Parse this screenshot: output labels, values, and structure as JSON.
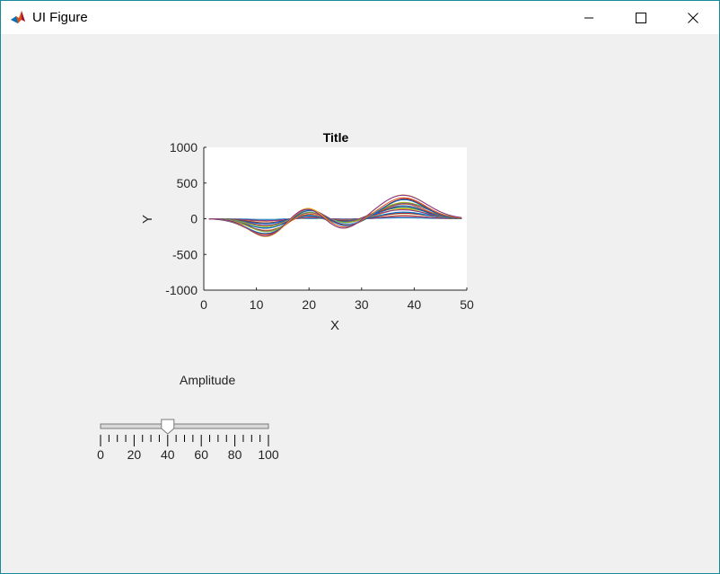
{
  "window": {
    "title": "UI Figure",
    "icon": "matlab-logo-icon"
  },
  "controls": {
    "minimize": "minimize-icon",
    "maximize": "maximize-icon",
    "close": "close-icon"
  },
  "slider": {
    "label": "Amplitude",
    "value": 40,
    "min": 0,
    "max": 100,
    "tick_labels": [
      "0",
      "20",
      "40",
      "60",
      "80",
      "100"
    ]
  },
  "chart_data": {
    "type": "line",
    "title": "Title",
    "xlabel": "X",
    "ylabel": "Y",
    "xlim": [
      0,
      50
    ],
    "ylim": [
      -1000,
      1000
    ],
    "x_ticks": [
      0,
      10,
      20,
      30,
      40,
      50
    ],
    "y_ticks": [
      1000,
      500,
      0,
      -500,
      -1000
    ],
    "x_tick_labels": [
      "0",
      "10",
      "20",
      "30",
      "40",
      "50"
    ],
    "y_tick_labels": [
      "1000",
      "500",
      "0",
      "-500",
      "-1000"
    ],
    "series_count": 25,
    "x_range": [
      1,
      49
    ],
    "peaks_at_max": [
      {
        "x": 12,
        "y": -250
      },
      {
        "x": 20,
        "y": 160
      },
      {
        "x": 26,
        "y": -130
      },
      {
        "x": 38,
        "y": 320
      }
    ],
    "colors": [
      "#0072BD",
      "#D95319",
      "#EDB120",
      "#7E2F8E",
      "#77AC30",
      "#4DBEEE",
      "#A2142F"
    ]
  }
}
